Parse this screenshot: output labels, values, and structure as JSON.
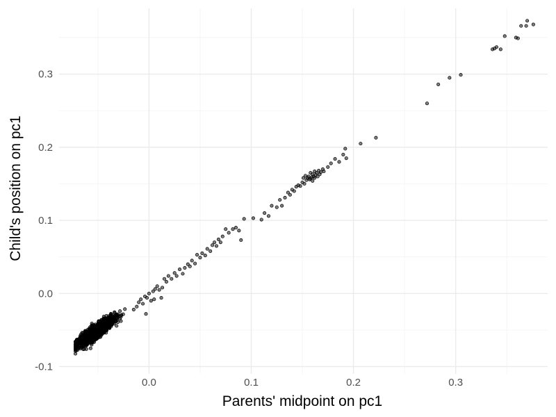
{
  "chart_data": {
    "type": "scatter",
    "title": "",
    "xlabel": "Parents' midpoint on pc1",
    "ylabel": "Child's position on pc1",
    "xlim": [
      -0.088,
      0.39
    ],
    "ylim": [
      -0.11,
      0.39
    ],
    "x_ticks": [
      0.0,
      0.1,
      0.2,
      0.3
    ],
    "x_tick_labels": [
      "0.0",
      "0.1",
      "0.2",
      "0.3"
    ],
    "y_ticks": [
      -0.1,
      0.0,
      0.1,
      0.2,
      0.3
    ],
    "y_tick_labels": [
      "-0.1",
      "0.0",
      "0.1",
      "0.2",
      "0.3"
    ],
    "grid": true,
    "legend": "none",
    "point_color": "#000000",
    "point_alpha": 0.5,
    "cluster": {
      "description_count": 1400,
      "x_range": [
        -0.072,
        -0.018
      ],
      "center_x": -0.052,
      "center_y": -0.052,
      "approx_slope": 0.95
    },
    "points": [
      {
        "x": -0.015,
        "y": -0.022
      },
      {
        "x": -0.012,
        "y": -0.018
      },
      {
        "x": -0.01,
        "y": -0.012
      },
      {
        "x": -0.008,
        "y": -0.008
      },
      {
        "x": -0.006,
        "y": -0.014
      },
      {
        "x": -0.004,
        "y": -0.004
      },
      {
        "x": -0.003,
        "y": -0.028
      },
      {
        "x": -0.002,
        "y": -0.006
      },
      {
        "x": 0.0,
        "y": 0.0
      },
      {
        "x": 0.002,
        "y": -0.01
      },
      {
        "x": 0.004,
        "y": 0.003
      },
      {
        "x": 0.005,
        "y": -0.008
      },
      {
        "x": 0.006,
        "y": 0.006
      },
      {
        "x": 0.008,
        "y": 0.01
      },
      {
        "x": 0.01,
        "y": 0.005
      },
      {
        "x": 0.012,
        "y": -0.006
      },
      {
        "x": 0.013,
        "y": 0.008
      },
      {
        "x": 0.015,
        "y": 0.02
      },
      {
        "x": 0.017,
        "y": 0.016
      },
      {
        "x": 0.019,
        "y": 0.024
      },
      {
        "x": 0.022,
        "y": 0.02
      },
      {
        "x": 0.025,
        "y": 0.028
      },
      {
        "x": 0.027,
        "y": 0.024
      },
      {
        "x": 0.03,
        "y": 0.033
      },
      {
        "x": 0.033,
        "y": 0.027
      },
      {
        "x": 0.035,
        "y": 0.035
      },
      {
        "x": 0.038,
        "y": 0.04
      },
      {
        "x": 0.04,
        "y": 0.037
      },
      {
        "x": 0.042,
        "y": 0.045
      },
      {
        "x": 0.045,
        "y": 0.041
      },
      {
        "x": 0.047,
        "y": 0.053
      },
      {
        "x": 0.05,
        "y": 0.049
      },
      {
        "x": 0.052,
        "y": 0.055
      },
      {
        "x": 0.055,
        "y": 0.052
      },
      {
        "x": 0.057,
        "y": 0.061
      },
      {
        "x": 0.06,
        "y": 0.058
      },
      {
        "x": 0.062,
        "y": 0.066
      },
      {
        "x": 0.064,
        "y": 0.07
      },
      {
        "x": 0.066,
        "y": 0.065
      },
      {
        "x": 0.068,
        "y": 0.074
      },
      {
        "x": 0.07,
        "y": 0.07
      },
      {
        "x": 0.072,
        "y": 0.078
      },
      {
        "x": 0.075,
        "y": 0.088
      },
      {
        "x": 0.078,
        "y": 0.083
      },
      {
        "x": 0.082,
        "y": 0.088
      },
      {
        "x": 0.085,
        "y": 0.09
      },
      {
        "x": 0.088,
        "y": 0.086
      },
      {
        "x": 0.09,
        "y": 0.073
      },
      {
        "x": 0.093,
        "y": 0.102
      },
      {
        "x": 0.102,
        "y": 0.103
      },
      {
        "x": 0.11,
        "y": 0.101
      },
      {
        "x": 0.113,
        "y": 0.11
      },
      {
        "x": 0.117,
        "y": 0.106
      },
      {
        "x": 0.12,
        "y": 0.12
      },
      {
        "x": 0.125,
        "y": 0.118
      },
      {
        "x": 0.128,
        "y": 0.128
      },
      {
        "x": 0.13,
        "y": 0.12
      },
      {
        "x": 0.133,
        "y": 0.131
      },
      {
        "x": 0.136,
        "y": 0.138
      },
      {
        "x": 0.138,
        "y": 0.135
      },
      {
        "x": 0.14,
        "y": 0.142
      },
      {
        "x": 0.142,
        "y": 0.14
      },
      {
        "x": 0.144,
        "y": 0.146
      },
      {
        "x": 0.146,
        "y": 0.148
      },
      {
        "x": 0.148,
        "y": 0.147
      },
      {
        "x": 0.15,
        "y": 0.152
      },
      {
        "x": 0.151,
        "y": 0.158
      },
      {
        "x": 0.152,
        "y": 0.15
      },
      {
        "x": 0.153,
        "y": 0.161
      },
      {
        "x": 0.154,
        "y": 0.155
      },
      {
        "x": 0.155,
        "y": 0.158
      },
      {
        "x": 0.156,
        "y": 0.16
      },
      {
        "x": 0.157,
        "y": 0.156
      },
      {
        "x": 0.158,
        "y": 0.165
      },
      {
        "x": 0.158,
        "y": 0.157
      },
      {
        "x": 0.159,
        "y": 0.159
      },
      {
        "x": 0.16,
        "y": 0.163
      },
      {
        "x": 0.16,
        "y": 0.154
      },
      {
        "x": 0.161,
        "y": 0.16
      },
      {
        "x": 0.162,
        "y": 0.167
      },
      {
        "x": 0.162,
        "y": 0.158
      },
      {
        "x": 0.163,
        "y": 0.162
      },
      {
        "x": 0.164,
        "y": 0.165
      },
      {
        "x": 0.165,
        "y": 0.16
      },
      {
        "x": 0.166,
        "y": 0.168
      },
      {
        "x": 0.167,
        "y": 0.163
      },
      {
        "x": 0.168,
        "y": 0.166
      },
      {
        "x": 0.17,
        "y": 0.17
      },
      {
        "x": 0.171,
        "y": 0.167
      },
      {
        "x": 0.175,
        "y": 0.173
      },
      {
        "x": 0.178,
        "y": 0.178
      },
      {
        "x": 0.182,
        "y": 0.184
      },
      {
        "x": 0.186,
        "y": 0.18
      },
      {
        "x": 0.19,
        "y": 0.19
      },
      {
        "x": 0.193,
        "y": 0.185
      },
      {
        "x": 0.192,
        "y": 0.198
      },
      {
        "x": 0.207,
        "y": 0.205
      },
      {
        "x": 0.222,
        "y": 0.213
      },
      {
        "x": 0.272,
        "y": 0.26
      },
      {
        "x": 0.283,
        "y": 0.286
      },
      {
        "x": 0.294,
        "y": 0.295
      },
      {
        "x": 0.305,
        "y": 0.299
      },
      {
        "x": 0.336,
        "y": 0.334
      },
      {
        "x": 0.338,
        "y": 0.335
      },
      {
        "x": 0.34,
        "y": 0.337
      },
      {
        "x": 0.344,
        "y": 0.334
      },
      {
        "x": 0.348,
        "y": 0.352
      },
      {
        "x": 0.359,
        "y": 0.35
      },
      {
        "x": 0.361,
        "y": 0.349
      },
      {
        "x": 0.364,
        "y": 0.366
      },
      {
        "x": 0.369,
        "y": 0.366
      },
      {
        "x": 0.37,
        "y": 0.373
      },
      {
        "x": 0.376,
        "y": 0.368
      }
    ]
  }
}
